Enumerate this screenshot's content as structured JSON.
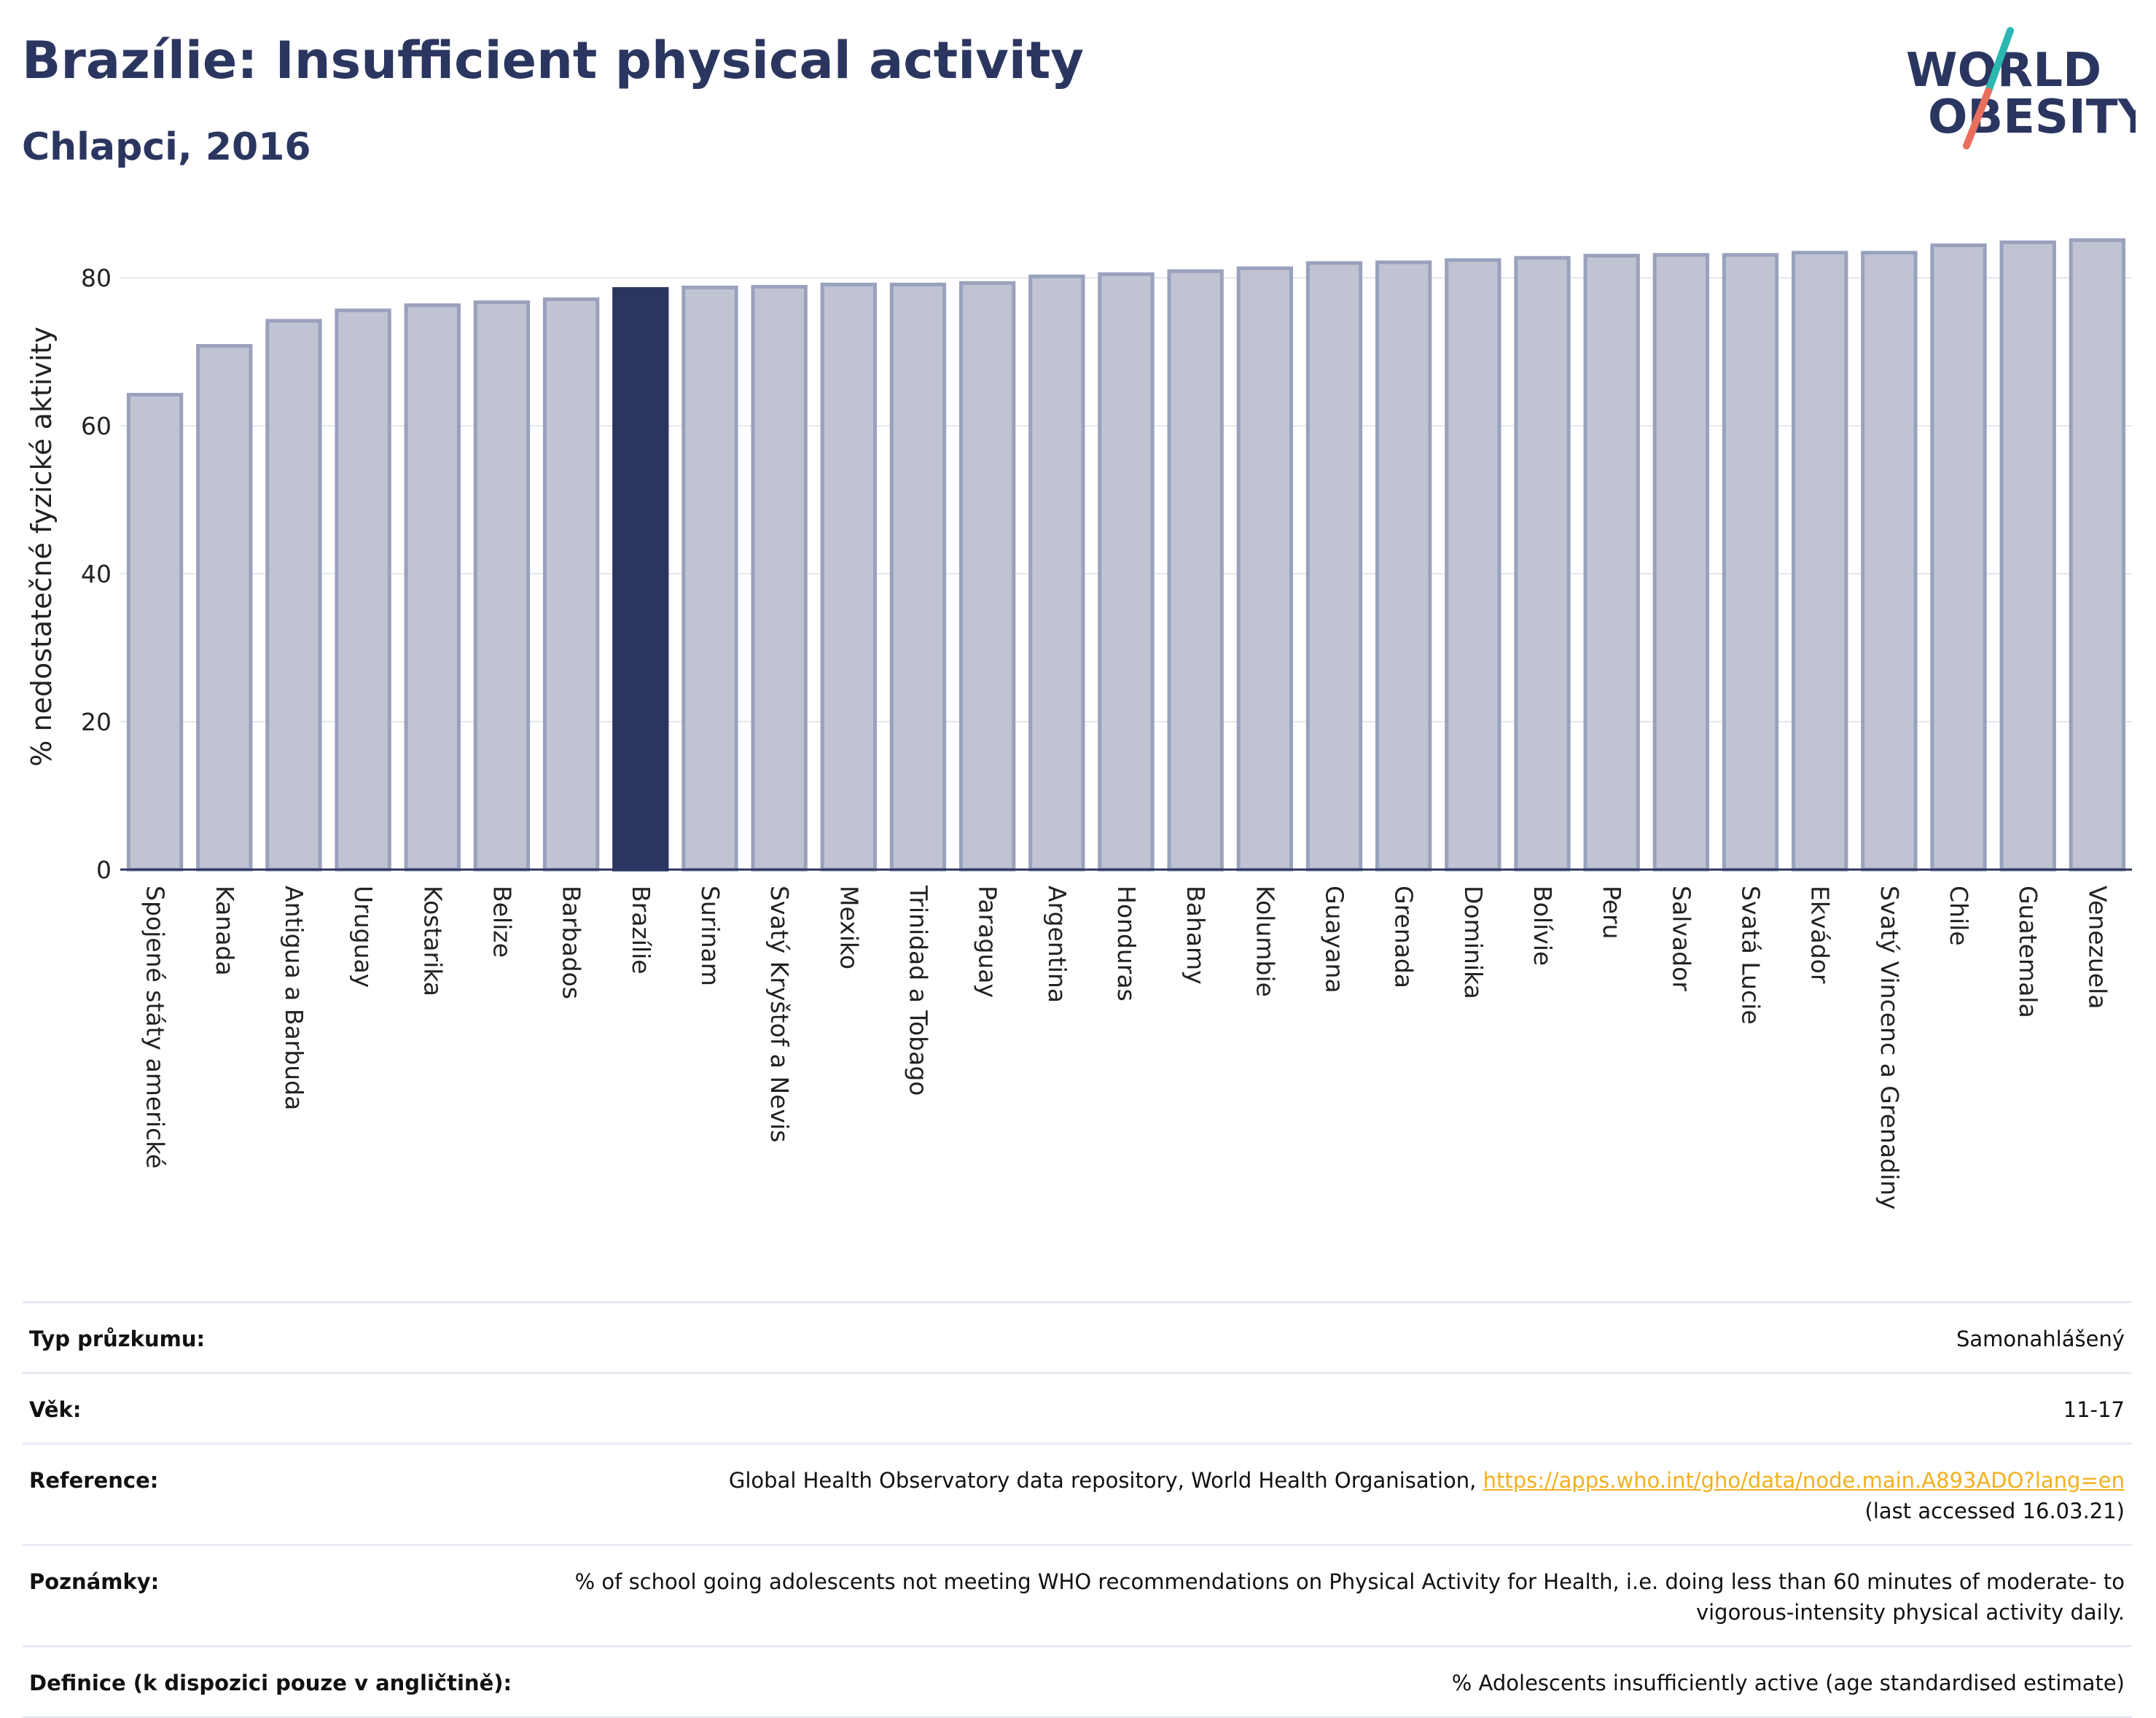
{
  "header": {
    "title": "Brazílie: Insufficient physical activity",
    "subtitle": "Chlapci, 2016"
  },
  "logo": {
    "line1": "WORLD",
    "line2": "OBESITY"
  },
  "chart_data": {
    "type": "bar",
    "ylabel": "% nedostatečné fyzické aktivity",
    "ylim": [
      0,
      88
    ],
    "yticks": [
      0,
      20,
      40,
      60,
      80
    ],
    "grid": true,
    "highlight": "Brazílie",
    "colors": {
      "bar": "#c0c4d2",
      "bar_edge": "#9aa1bd",
      "highlight": "#2b3660",
      "axis": "#2b3660",
      "grid": "#e4e6ee"
    },
    "categories": [
      "Spojené státy americké",
      "Kanada",
      "Antigua a Barbuda",
      "Uruguay",
      "Kostarika",
      "Belize",
      "Barbados",
      "Brazílie",
      "Surinam",
      "Svatý Kryštof a Nevis",
      "Mexiko",
      "Trinidad a Tobago",
      "Paraguay",
      "Argentina",
      "Honduras",
      "Bahamy",
      "Kolumbie",
      "Guayana",
      "Grenada",
      "Dominika",
      "Bolívie",
      "Peru",
      "Salvador",
      "Svatá Lucie",
      "Ekvádor",
      "Svatý Vincenc a Grenadiny",
      "Chile",
      "Guatemala",
      "Venezuela"
    ],
    "values": [
      64.2,
      70.8,
      74.2,
      75.6,
      76.3,
      76.7,
      77.1,
      78.5,
      78.7,
      78.8,
      79.1,
      79.1,
      79.3,
      80.2,
      80.5,
      80.9,
      81.3,
      82.0,
      82.1,
      82.4,
      82.7,
      83.0,
      83.1,
      83.1,
      83.4,
      83.4,
      84.4,
      84.8,
      85.1
    ]
  },
  "info_table": [
    {
      "label": "Typ průzkumu:",
      "value": "Samonahlášený"
    },
    {
      "label": "Věk:",
      "value": "11-17"
    },
    {
      "label": "Reference:",
      "value_pre": "Global Health Observatory data repository, World Health Organisation, ",
      "link": "https://apps.who.int/gho/data/node.main.A893ADO?lang=en",
      "value_post": "(last accessed 16.03.21)"
    },
    {
      "label": "Poznámky:",
      "value": "% of school going adolescents not meeting WHO recommendations on Physical Activity for Health, i.e. doing less than 60 minutes of moderate- to vigorous-intensity physical activity daily."
    },
    {
      "label": "Definice (k dispozici pouze v angličtině):",
      "value": "% Adolescents insufficiently active (age standardised estimate)"
    }
  ]
}
